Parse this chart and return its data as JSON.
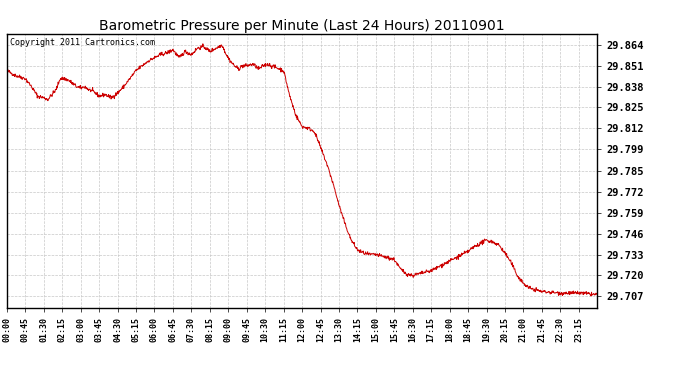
{
  "title": "Barometric Pressure per Minute (Last 24 Hours) 20110901",
  "copyright_text": "Copyright 2011 Cartronics.com",
  "line_color": "#cc0000",
  "background_color": "#ffffff",
  "plot_bg_color": "#ffffff",
  "grid_color": "#c8c8c8",
  "yticks": [
    29.707,
    29.72,
    29.733,
    29.746,
    29.759,
    29.772,
    29.785,
    29.799,
    29.812,
    29.825,
    29.838,
    29.851,
    29.864
  ],
  "ylim": [
    29.7,
    29.871
  ],
  "xtick_labels": [
    "00:00",
    "00:45",
    "01:30",
    "02:15",
    "03:00",
    "03:45",
    "04:30",
    "05:15",
    "06:00",
    "06:45",
    "07:30",
    "08:15",
    "09:00",
    "09:45",
    "10:30",
    "11:15",
    "12:00",
    "12:45",
    "13:30",
    "14:15",
    "15:00",
    "15:45",
    "16:30",
    "17:15",
    "18:00",
    "18:45",
    "19:30",
    "20:15",
    "21:00",
    "21:45",
    "22:30",
    "23:15"
  ],
  "num_points": 1440,
  "waypoints": [
    [
      0,
      29.848
    ],
    [
      20,
      29.845
    ],
    [
      45,
      29.843
    ],
    [
      60,
      29.838
    ],
    [
      75,
      29.832
    ],
    [
      90,
      29.831
    ],
    [
      100,
      29.83
    ],
    [
      110,
      29.833
    ],
    [
      120,
      29.836
    ],
    [
      130,
      29.843
    ],
    [
      140,
      29.843
    ],
    [
      150,
      29.842
    ],
    [
      160,
      29.84
    ],
    [
      170,
      29.838
    ],
    [
      180,
      29.837
    ],
    [
      190,
      29.838
    ],
    [
      200,
      29.836
    ],
    [
      210,
      29.835
    ],
    [
      225,
      29.832
    ],
    [
      240,
      29.833
    ],
    [
      255,
      29.831
    ],
    [
      270,
      29.834
    ],
    [
      285,
      29.838
    ],
    [
      300,
      29.843
    ],
    [
      315,
      29.848
    ],
    [
      330,
      29.851
    ],
    [
      345,
      29.854
    ],
    [
      360,
      29.856
    ],
    [
      375,
      29.858
    ],
    [
      390,
      29.859
    ],
    [
      405,
      29.861
    ],
    [
      420,
      29.856
    ],
    [
      435,
      29.86
    ],
    [
      450,
      29.858
    ],
    [
      465,
      29.862
    ],
    [
      480,
      29.863
    ],
    [
      495,
      29.86
    ],
    [
      510,
      29.862
    ],
    [
      525,
      29.864
    ],
    [
      535,
      29.858
    ],
    [
      545,
      29.854
    ],
    [
      555,
      29.851
    ],
    [
      565,
      29.849
    ],
    [
      575,
      29.851
    ],
    [
      585,
      29.851
    ],
    [
      600,
      29.852
    ],
    [
      615,
      29.849
    ],
    [
      625,
      29.851
    ],
    [
      635,
      29.852
    ],
    [
      645,
      29.851
    ],
    [
      655,
      29.85
    ],
    [
      665,
      29.849
    ],
    [
      675,
      29.848
    ],
    [
      690,
      29.832
    ],
    [
      705,
      29.82
    ],
    [
      720,
      29.813
    ],
    [
      735,
      29.812
    ],
    [
      750,
      29.81
    ],
    [
      765,
      29.8
    ],
    [
      780,
      29.79
    ],
    [
      795,
      29.778
    ],
    [
      810,
      29.764
    ],
    [
      825,
      29.752
    ],
    [
      840,
      29.742
    ],
    [
      855,
      29.736
    ],
    [
      870,
      29.734
    ],
    [
      885,
      29.733
    ],
    [
      900,
      29.733
    ],
    [
      915,
      29.732
    ],
    [
      930,
      29.731
    ],
    [
      945,
      29.73
    ],
    [
      960,
      29.724
    ],
    [
      975,
      29.721
    ],
    [
      990,
      29.72
    ],
    [
      1005,
      29.721
    ],
    [
      1020,
      29.722
    ],
    [
      1035,
      29.723
    ],
    [
      1050,
      29.725
    ],
    [
      1065,
      29.727
    ],
    [
      1080,
      29.729
    ],
    [
      1095,
      29.731
    ],
    [
      1110,
      29.733
    ],
    [
      1125,
      29.735
    ],
    [
      1140,
      29.738
    ],
    [
      1155,
      29.74
    ],
    [
      1170,
      29.742
    ],
    [
      1185,
      29.741
    ],
    [
      1200,
      29.739
    ],
    [
      1215,
      29.734
    ],
    [
      1230,
      29.728
    ],
    [
      1245,
      29.72
    ],
    [
      1260,
      29.715
    ],
    [
      1275,
      29.712
    ],
    [
      1290,
      29.711
    ],
    [
      1305,
      29.71
    ],
    [
      1350,
      29.709
    ],
    [
      1400,
      29.709
    ],
    [
      1439,
      29.708
    ]
  ]
}
